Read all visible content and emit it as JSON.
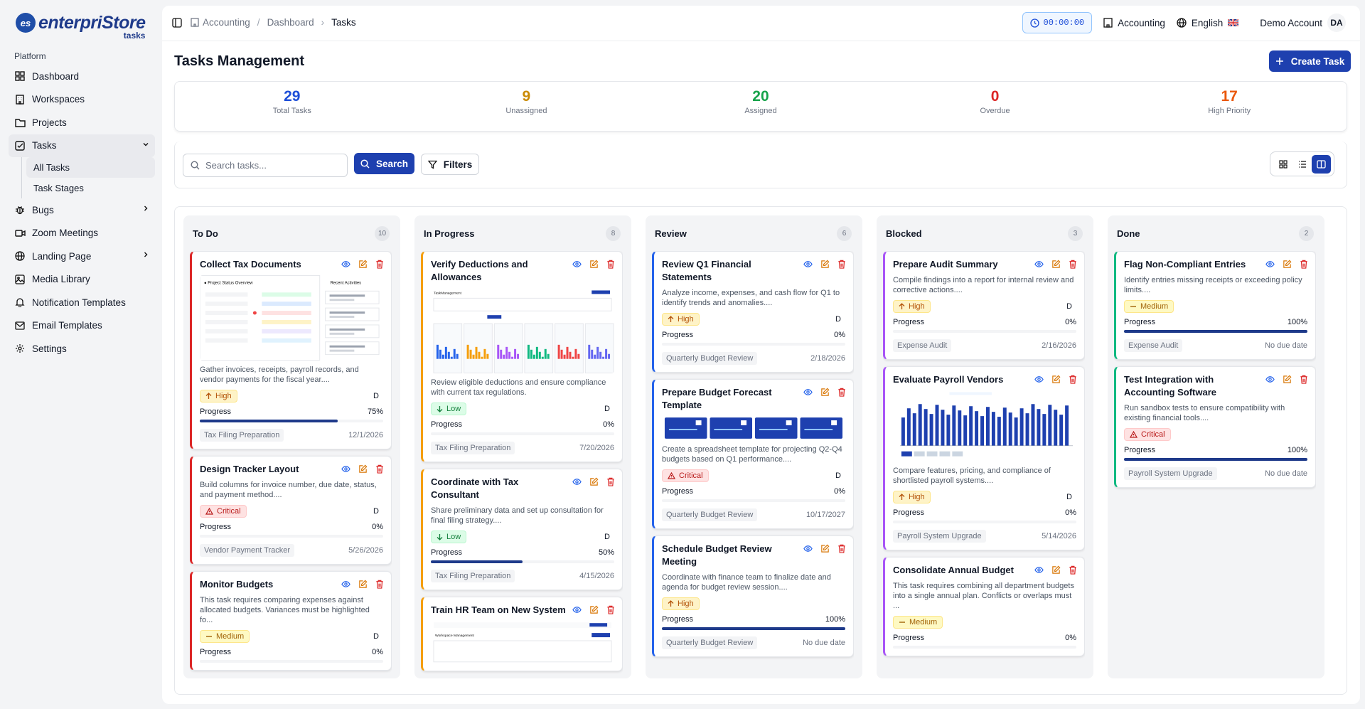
{
  "brand": {
    "name": "enterpriStore",
    "sub": "tasks",
    "mark": "es"
  },
  "sidebar": {
    "group_label": "Platform",
    "items": [
      {
        "label": "Dashboard",
        "icon": "dashboard-icon"
      },
      {
        "label": "Workspaces",
        "icon": "building-icon"
      },
      {
        "label": "Projects",
        "icon": "folder-icon"
      },
      {
        "label": "Tasks",
        "icon": "checkbox-icon"
      },
      {
        "label": "Bugs",
        "icon": "bug-icon"
      },
      {
        "label": "Zoom Meetings",
        "icon": "video-icon"
      },
      {
        "label": "Landing Page",
        "icon": "globe-icon"
      },
      {
        "label": "Media Library",
        "icon": "image-icon"
      },
      {
        "label": "Notification Templates",
        "icon": "bell-icon"
      },
      {
        "label": "Email Templates",
        "icon": "mail-icon"
      },
      {
        "label": "Settings",
        "icon": "gear-icon"
      }
    ],
    "task_sub": [
      "All Tasks",
      "Task Stages"
    ]
  },
  "breadcrumb": [
    "Accounting",
    "Dashboard",
    "Tasks"
  ],
  "topbar": {
    "timer": "00:00:00",
    "workspace": "Accounting",
    "language": "English",
    "account": "Demo Account",
    "initials": "DA"
  },
  "page": {
    "title": "Tasks Management",
    "create_label": "Create Task"
  },
  "stats": [
    {
      "value": "29",
      "label": "Total Tasks",
      "color": "#1d4ed8"
    },
    {
      "value": "9",
      "label": "Unassigned",
      "color": "#ca8a04"
    },
    {
      "value": "20",
      "label": "Assigned",
      "color": "#16a34a"
    },
    {
      "value": "0",
      "label": "Overdue",
      "color": "#dc2626"
    },
    {
      "value": "17",
      "label": "High Priority",
      "color": "#ea580c"
    }
  ],
  "search": {
    "placeholder": "Search tasks...",
    "button": "Search",
    "filters": "Filters"
  },
  "columns": [
    {
      "name": "To Do",
      "count": "10",
      "cards": [
        {
          "title": "Collect Tax Documents",
          "thumb": "overview",
          "desc": "Gather invoices, receipts, payroll records, and vendor payments for the fiscal year....",
          "priority": "High",
          "assignee": "D",
          "progress_label": "Progress",
          "progress": "75%",
          "tag": "Tax Filing Preparation",
          "due": "12/1/2026"
        },
        {
          "title": "Design Tracker Layout",
          "desc": "Build columns for invoice number, due date, status, and payment method....",
          "priority": "Critical",
          "assignee": "D",
          "progress_label": "Progress",
          "progress": "0%",
          "tag": "Vendor Payment Tracker",
          "due": "5/26/2026"
        },
        {
          "title": "Monitor Budgets",
          "desc": "This task requires comparing expenses against allocated budgets. Variances must be highlighted fo...",
          "priority": "Medium",
          "assignee": "D",
          "progress_label": "Progress",
          "progress": "0%",
          "tag": "",
          "due": ""
        }
      ]
    },
    {
      "name": "In Progress",
      "count": "8",
      "cards": [
        {
          "title": "Verify Deductions and Allowances",
          "thumb": "dashboard",
          "desc": "Review eligible deductions and ensure compliance with current tax regulations.",
          "priority": "Low",
          "assignee": "D",
          "progress_label": "Progress",
          "progress": "0%",
          "tag": "Tax Filing Preparation",
          "due": "7/20/2026"
        },
        {
          "title": "Coordinate with Tax Consultant",
          "desc": "Share preliminary data and set up consultation for final filing strategy....",
          "priority": "Low",
          "assignee": "D",
          "progress_label": "Progress",
          "progress": "50%",
          "tag": "Tax Filing Preparation",
          "due": "4/15/2026"
        },
        {
          "title": "Train HR Team on New System",
          "thumb": "workspace",
          "desc": "",
          "priority": "",
          "assignee": "",
          "progress_label": "",
          "progress": "",
          "tag": "",
          "due": ""
        }
      ]
    },
    {
      "name": "Review",
      "count": "6",
      "cards": [
        {
          "title": "Review Q1 Financial Statements",
          "desc": "Analyze income, expenses, and cash flow for Q1 to identify trends and anomalies....",
          "priority": "High",
          "assignee": "D",
          "progress_label": "Progress",
          "progress": "0%",
          "tag": "Quarterly Budget Review",
          "due": "2/18/2026"
        },
        {
          "title": "Prepare Budget Forecast Template",
          "thumb": "tiles",
          "desc": "Create a spreadsheet template for projecting Q2-Q4 budgets based on Q1 performance....",
          "priority": "Critical",
          "assignee": "D",
          "progress_label": "Progress",
          "progress": "0%",
          "tag": "Quarterly Budget Review",
          "due": "10/17/2027"
        },
        {
          "title": "Schedule Budget Review Meeting",
          "desc": "Coordinate with finance team to finalize date and agenda for budget review session....",
          "priority": "High",
          "assignee": "",
          "progress_label": "Progress",
          "progress": "100%",
          "tag": "Quarterly Budget Review",
          "due": "No due date"
        }
      ]
    },
    {
      "name": "Blocked",
      "count": "3",
      "cards": [
        {
          "title": "Prepare Audit Summary",
          "desc": "Compile findings into a report for internal review and corrective actions....",
          "priority": "High",
          "assignee": "D",
          "progress_label": "Progress",
          "progress": "0%",
          "tag": "Expense Audit",
          "due": "2/16/2026"
        },
        {
          "title": "Evaluate Payroll Vendors",
          "thumb": "bars",
          "desc": "Compare features, pricing, and compliance of shortlisted payroll systems....",
          "priority": "High",
          "assignee": "D",
          "progress_label": "Progress",
          "progress": "0%",
          "tag": "Payroll System Upgrade",
          "due": "5/14/2026"
        },
        {
          "title": "Consolidate Annual Budget",
          "desc": "This task requires combining all department budgets into a single annual plan. Conflicts or overlaps must ...",
          "priority": "Medium",
          "assignee": "",
          "progress_label": "Progress",
          "progress": "0%",
          "tag": "",
          "due": ""
        }
      ]
    },
    {
      "name": "Done",
      "count": "2",
      "cards": [
        {
          "title": "Flag Non-Compliant Entries",
          "desc": "Identify entries missing receipts or exceeding policy limits....",
          "priority": "Medium",
          "assignee": "",
          "progress_label": "Progress",
          "progress": "100%",
          "tag": "Expense Audit",
          "due": "No due date"
        },
        {
          "title": "Test Integration with Accounting Software",
          "desc": "Run sandbox tests to ensure compatibility with existing financial tools....",
          "priority": "Critical",
          "assignee": "",
          "progress_label": "Progress",
          "progress": "100%",
          "tag": "Payroll System Upgrade",
          "due": "No due date"
        }
      ]
    }
  ]
}
